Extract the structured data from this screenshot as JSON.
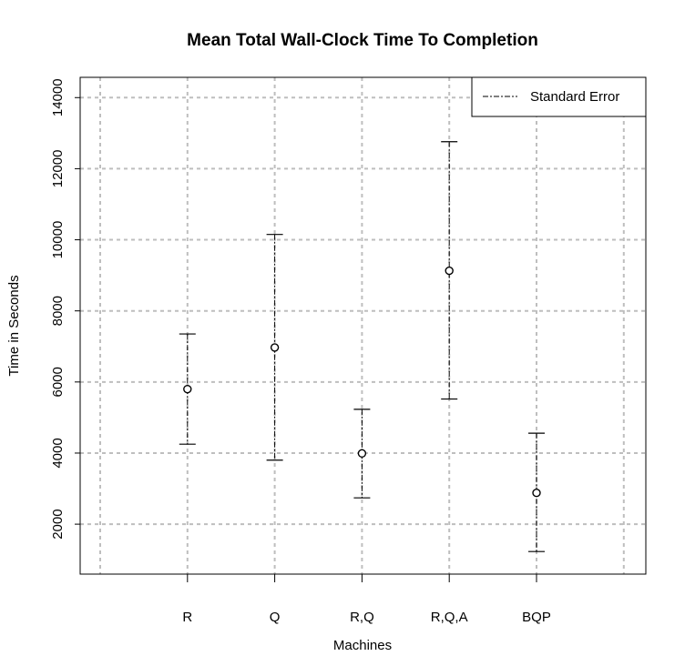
{
  "chart_data": {
    "type": "scatter",
    "title": "Mean Total Wall-Clock Time To Completion",
    "xlabel": "Machines",
    "ylabel": "Time in Seconds",
    "categories": [
      "R",
      "Q",
      "R,Q",
      "R,Q,A",
      "BQP"
    ],
    "series": [
      {
        "name": "Standard Error",
        "means": [
          5800,
          6970,
          3990,
          9130,
          2880
        ],
        "lower": [
          4250,
          3800,
          2740,
          5520,
          1230
        ],
        "upper": [
          7350,
          10150,
          5230,
          12760,
          4560
        ]
      }
    ],
    "y_ticks": [
      2000,
      4000,
      6000,
      8000,
      10000,
      12000,
      14000
    ],
    "ylim": [
      595,
      14570
    ],
    "grid": true,
    "legend_position": "top-right",
    "colors": {
      "points": "#000000",
      "grid": "#bebebe",
      "errorbar": "#000000"
    }
  }
}
